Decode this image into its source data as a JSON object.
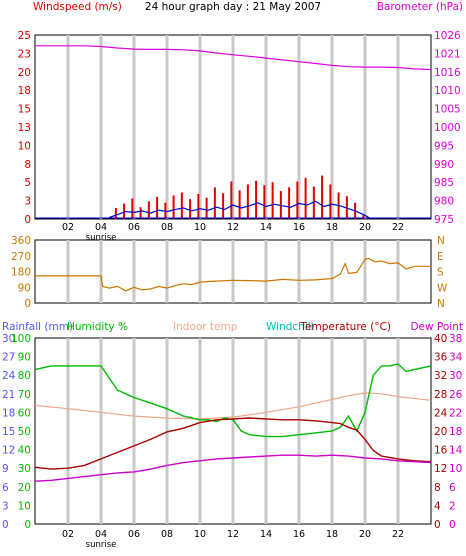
{
  "title": "24 hour graph day : 21 May 2007",
  "hour_labels": [
    "02",
    "04",
    "06",
    "08",
    "10",
    "12",
    "14",
    "16",
    "18",
    "20",
    "22"
  ],
  "sunrise_label": "sunrise",
  "colors": {
    "wind": "#dd0000",
    "gust": "#0000cc",
    "baro": "#dd00dd",
    "dir": "#cc7700",
    "humidity": "#00bb00",
    "indoor": "#f0a888",
    "windchill": "#00bbbb",
    "temperature": "#aa0000",
    "dewpoint": "#cc00cc",
    "rain_label": "#5555ff",
    "grid": "#c8c8c8",
    "frame": "#000000"
  },
  "chart_data": [
    {
      "type": "line",
      "panel": "wind-baro",
      "left_axis_label": "Windspeed (m/s)",
      "right_axis_label": "Barometer (hPa)",
      "left_ticks": [
        "0",
        "3",
        "5",
        "8",
        "10",
        "13",
        "15",
        "18",
        "20",
        "23",
        "25"
      ],
      "right_ticks": [
        "975",
        "980",
        "985",
        "990",
        "995",
        "1000",
        "1005",
        "1010",
        "1016",
        "1021",
        "1026"
      ],
      "ylim_left": [
        0,
        25
      ],
      "ylim_right": [
        975,
        1026
      ],
      "series": [
        {
          "name": "Barometer (hPa)",
          "axis": "right",
          "x": [
            0,
            1,
            2,
            3,
            4,
            5,
            6,
            7,
            8,
            9,
            10,
            11,
            12,
            13,
            14,
            15,
            16,
            17,
            18,
            19,
            20,
            21,
            22,
            23,
            24
          ],
          "values": [
            1023.0,
            1023.0,
            1023.0,
            1023.0,
            1022.8,
            1022.4,
            1022.1,
            1022.0,
            1022.0,
            1021.9,
            1021.6,
            1021.0,
            1020.5,
            1020.1,
            1019.6,
            1019.1,
            1018.6,
            1018.1,
            1017.6,
            1017.2,
            1017.1,
            1017.1,
            1017.0,
            1016.6,
            1016.4
          ]
        },
        {
          "type": "bar",
          "axis": "left",
          "x": [
            4.9,
            5.4,
            5.9,
            6.4,
            6.9,
            7.4,
            7.9,
            8.4,
            8.9,
            9.4,
            9.9,
            10.4,
            10.9,
            11.4,
            11.9,
            12.4,
            12.9,
            13.4,
            13.9,
            14.4,
            14.9,
            15.4,
            15.9,
            16.4,
            16.9,
            17.4,
            17.9,
            18.4,
            18.9,
            19.4,
            19.9
          ],
          "values": [
            1.5,
            2.1,
            2.8,
            1.6,
            2.4,
            3.0,
            2.2,
            3.2,
            3.6,
            2.7,
            3.4,
            2.9,
            4.3,
            3.5,
            5.1,
            3.9,
            4.7,
            5.2,
            4.6,
            5.0,
            3.8,
            4.3,
            5.1,
            5.6,
            4.4,
            5.9,
            4.7,
            3.6,
            3.1,
            2.2,
            0.5
          ]
        },
        {
          "type": "line",
          "axis": "left",
          "x": [
            4.5,
            5,
            5.5,
            6,
            6.5,
            7,
            7.5,
            8,
            8.5,
            9,
            9.5,
            10,
            10.5,
            11,
            11.5,
            12,
            12.5,
            13,
            13.5,
            14,
            14.5,
            15,
            15.5,
            16,
            16.5,
            17,
            17.5,
            18,
            18.5,
            19,
            19.5,
            20,
            20.3
          ],
          "values": [
            0.2,
            0.6,
            1.0,
            0.9,
            1.1,
            0.8,
            1.2,
            1.0,
            1.3,
            1.5,
            1.1,
            1.4,
            1.2,
            1.6,
            1.3,
            1.9,
            1.5,
            1.8,
            2.2,
            1.7,
            2.0,
            1.8,
            1.6,
            2.1,
            1.9,
            2.4,
            1.7,
            2.0,
            1.8,
            1.4,
            1.0,
            0.5,
            0.1
          ]
        }
      ]
    },
    {
      "type": "line",
      "panel": "wind-direction",
      "left_ticks": [
        "0",
        "90",
        "180",
        "270",
        "360"
      ],
      "right_ticks": [
        "N",
        "W",
        "S",
        "E",
        "N"
      ],
      "ylim": [
        0,
        360
      ],
      "series": [
        {
          "x": [
            0,
            1,
            2,
            3,
            4,
            4.1,
            4.5,
            5,
            5.5,
            6,
            6.5,
            7,
            7.5,
            8,
            8.5,
            9,
            9.5,
            10,
            11,
            12,
            13,
            14,
            15,
            16,
            17,
            18,
            18.5,
            18.8,
            19,
            19.5,
            20,
            20.2,
            20.6,
            21,
            21.5,
            22,
            22.5,
            23,
            24
          ],
          "values": [
            155,
            155,
            155,
            155,
            155,
            95,
            85,
            95,
            70,
            90,
            75,
            80,
            95,
            85,
            100,
            110,
            105,
            120,
            125,
            130,
            128,
            125,
            135,
            130,
            132,
            140,
            165,
            225,
            170,
            175,
            250,
            255,
            235,
            240,
            225,
            230,
            195,
            210,
            210
          ]
        }
      ]
    },
    {
      "type": "line",
      "panel": "temp-humidity",
      "left_axis_labels": [
        "Rainfall (mm)",
        "Humidity %"
      ],
      "legend": [
        "Indoor temp",
        "Windchill",
        "Temperature (°C)",
        "Dew Point"
      ],
      "left_ticks_humidity": [
        "0",
        "10",
        "20",
        "30",
        "40",
        "50",
        "60",
        "70",
        "80",
        "90",
        "100"
      ],
      "left_ticks_rain": [
        "0",
        "3",
        "6",
        "9",
        "12",
        "15",
        "18",
        "21",
        "24",
        "27",
        "30"
      ],
      "right_ticks_temp": [
        "0",
        "4",
        "8",
        "12",
        "16",
        "20",
        "24",
        "28",
        "32",
        "36",
        "40"
      ],
      "right_ticks_dew": [
        "0",
        "2",
        "6",
        "10",
        "14",
        "18",
        "22",
        "26",
        "30",
        "34",
        "38"
      ],
      "ylim_humidity": [
        0,
        100
      ],
      "ylim_temp": [
        0,
        40
      ],
      "series": [
        {
          "name": "Humidity %",
          "axis": "humidity",
          "x": [
            0,
            1,
            2,
            3,
            4,
            5,
            6,
            7,
            8,
            9,
            10,
            10.5,
            11,
            11.5,
            12,
            12.5,
            13,
            14,
            15,
            16,
            17,
            18,
            18.5,
            19,
            19.5,
            20,
            20.5,
            21,
            21.5,
            22,
            22.5,
            23,
            24
          ],
          "values": [
            83,
            85,
            85,
            85,
            85,
            72,
            68,
            65,
            62,
            58,
            56,
            56,
            55,
            57,
            56,
            50,
            48,
            47,
            47,
            48,
            49,
            50,
            52,
            58,
            50,
            60,
            80,
            85,
            85,
            86,
            82,
            83,
            85
          ]
        },
        {
          "name": "Indoor temp",
          "axis": "temp",
          "x": [
            0,
            2,
            4,
            6,
            8,
            10,
            12,
            14,
            16,
            18,
            19,
            20,
            21,
            22,
            24
          ],
          "values": [
            25.5,
            24.8,
            24.0,
            23.2,
            22.8,
            22.6,
            23.0,
            24.0,
            25.2,
            26.8,
            27.6,
            28.2,
            28.0,
            27.4,
            26.6
          ]
        },
        {
          "name": "Temperature (°C)",
          "axis": "temp",
          "x": [
            0,
            1,
            2,
            3,
            4,
            5,
            6,
            7,
            8,
            9,
            10,
            11,
            12,
            13,
            14,
            15,
            16,
            17,
            18,
            18.5,
            19,
            19.5,
            20,
            20.5,
            21,
            22,
            23,
            24
          ],
          "values": [
            12.2,
            11.8,
            12.0,
            12.6,
            14.0,
            15.4,
            16.8,
            18.2,
            19.8,
            20.6,
            21.8,
            22.4,
            22.6,
            22.8,
            22.6,
            22.4,
            22.4,
            22.2,
            21.8,
            21.6,
            20.8,
            20.2,
            18.2,
            15.8,
            14.6,
            14.0,
            13.6,
            13.4
          ]
        },
        {
          "name": "Dew Point",
          "axis": "temp",
          "x": [
            0,
            1,
            2,
            3,
            4,
            5,
            6,
            7,
            8,
            9,
            10,
            11,
            12,
            13,
            14,
            15,
            16,
            17,
            18,
            19,
            20,
            21,
            22,
            23,
            24
          ],
          "values": [
            9.2,
            9.4,
            9.8,
            10.2,
            10.6,
            11.0,
            11.2,
            11.8,
            12.6,
            13.2,
            13.6,
            14.0,
            14.2,
            14.4,
            14.6,
            14.8,
            14.8,
            14.6,
            14.8,
            14.6,
            14.2,
            14.0,
            13.6,
            13.4,
            13.2
          ]
        }
      ]
    }
  ]
}
